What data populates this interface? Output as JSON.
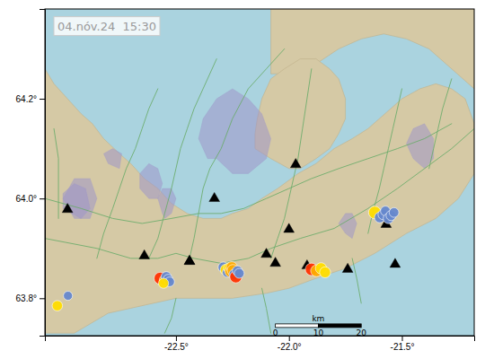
{
  "chart_data": {
    "type": "map",
    "annotation": "04.nóv.24  15:30",
    "xlim": [
      -23.08,
      -21.18
    ],
    "ylim": [
      63.725,
      64.38
    ],
    "xticks": [
      {
        "value": -22.5,
        "label": "-22.5°"
      },
      {
        "value": -22.0,
        "label": "-22.0°"
      },
      {
        "value": -21.5,
        "label": "-21.5°"
      }
    ],
    "yticks": [
      {
        "value": 63.8,
        "label": "63.8°"
      },
      {
        "value": 64.0,
        "label": "64.0°"
      },
      {
        "value": 64.2,
        "label": "64.2°"
      }
    ],
    "grid": false,
    "water_color": "#aad3df",
    "land_color": "#d5c9a5",
    "land_edge_color": "#c0b08a",
    "lava_color": "#9e96c8",
    "road_color": "#6aab6a",
    "land": [
      [
        [
          -23.08,
          63.73
        ],
        [
          -22.95,
          63.73
        ],
        [
          -22.8,
          63.77
        ],
        [
          -22.7,
          63.78
        ],
        [
          -22.6,
          63.79
        ],
        [
          -22.5,
          63.8
        ],
        [
          -22.4,
          63.8
        ],
        [
          -22.25,
          63.8
        ],
        [
          -22.1,
          63.81
        ],
        [
          -22.0,
          63.82
        ],
        [
          -21.88,
          63.84
        ],
        [
          -21.75,
          63.86
        ],
        [
          -21.62,
          63.89
        ],
        [
          -21.48,
          63.93
        ],
        [
          -21.35,
          63.96
        ],
        [
          -21.25,
          64.0
        ],
        [
          -21.18,
          64.05
        ],
        [
          -21.18,
          64.15
        ],
        [
          -21.22,
          64.2
        ],
        [
          -21.28,
          64.22
        ],
        [
          -21.35,
          64.23
        ],
        [
          -21.42,
          64.22
        ],
        [
          -21.5,
          64.2
        ],
        [
          -21.55,
          64.18
        ],
        [
          -21.6,
          64.16
        ],
        [
          -21.65,
          64.14
        ],
        [
          -21.72,
          64.12
        ],
        [
          -21.8,
          64.1
        ],
        [
          -21.88,
          64.07
        ],
        [
          -21.96,
          64.05
        ],
        [
          -22.05,
          64.02
        ],
        [
          -22.12,
          64.0
        ],
        [
          -22.18,
          63.98
        ],
        [
          -22.25,
          63.97
        ],
        [
          -22.3,
          63.96
        ],
        [
          -22.38,
          63.96
        ],
        [
          -22.45,
          63.97
        ],
        [
          -22.52,
          63.99
        ],
        [
          -22.58,
          64.02
        ],
        [
          -22.64,
          64.04
        ],
        [
          -22.7,
          64.07
        ],
        [
          -22.75,
          64.09
        ],
        [
          -22.82,
          64.12
        ],
        [
          -22.87,
          64.15
        ],
        [
          -22.92,
          64.17
        ],
        [
          -22.98,
          64.2
        ],
        [
          -23.04,
          64.23
        ],
        [
          -23.08,
          64.26
        ],
        [
          -23.08,
          63.73
        ]
      ],
      [
        [
          -22.08,
          64.25
        ],
        [
          -21.95,
          64.25
        ],
        [
          -21.88,
          64.27
        ],
        [
          -21.78,
          64.3
        ],
        [
          -21.68,
          64.32
        ],
        [
          -21.58,
          64.33
        ],
        [
          -21.48,
          64.32
        ],
        [
          -21.38,
          64.3
        ],
        [
          -21.28,
          64.26
        ],
        [
          -21.18,
          64.22
        ],
        [
          -21.18,
          64.38
        ],
        [
          -22.08,
          64.38
        ],
        [
          -22.08,
          64.25
        ]
      ],
      [
        [
          -22.15,
          64.1
        ],
        [
          -22.08,
          64.08
        ],
        [
          -22.0,
          64.06
        ],
        [
          -21.95,
          64.06
        ],
        [
          -21.88,
          64.08
        ],
        [
          -21.82,
          64.1
        ],
        [
          -21.78,
          64.13
        ],
        [
          -21.75,
          64.16
        ],
        [
          -21.75,
          64.2
        ],
        [
          -21.78,
          64.24
        ],
        [
          -21.82,
          64.26
        ],
        [
          -21.88,
          64.28
        ],
        [
          -21.95,
          64.28
        ],
        [
          -22.02,
          64.26
        ],
        [
          -22.08,
          64.24
        ],
        [
          -22.12,
          64.2
        ],
        [
          -22.14,
          64.16
        ],
        [
          -22.15,
          64.13
        ],
        [
          -22.15,
          64.1
        ]
      ]
    ],
    "lava": [
      [
        [
          -22.32,
          64.08
        ],
        [
          -22.25,
          64.05
        ],
        [
          -22.18,
          64.05
        ],
        [
          -22.1,
          64.08
        ],
        [
          -22.08,
          64.12
        ],
        [
          -22.12,
          64.17
        ],
        [
          -22.18,
          64.2
        ],
        [
          -22.25,
          64.22
        ],
        [
          -22.32,
          64.2
        ],
        [
          -22.38,
          64.16
        ],
        [
          -22.4,
          64.12
        ],
        [
          -22.36,
          64.08
        ]
      ],
      [
        [
          -22.95,
          63.96
        ],
        [
          -22.88,
          63.96
        ],
        [
          -22.85,
          64.0
        ],
        [
          -22.88,
          64.04
        ],
        [
          -22.95,
          64.04
        ],
        [
          -23.0,
          64.0
        ]
      ],
      [
        [
          -23.0,
          63.98
        ],
        [
          -22.92,
          63.96
        ],
        [
          -22.88,
          63.98
        ],
        [
          -22.9,
          64.02
        ],
        [
          -22.95,
          64.03
        ],
        [
          -23.0,
          64.01
        ]
      ],
      [
        [
          -22.55,
          63.96
        ],
        [
          -22.52,
          63.97
        ],
        [
          -22.5,
          64.0
        ],
        [
          -22.52,
          64.02
        ],
        [
          -22.56,
          64.02
        ],
        [
          -22.58,
          64.0
        ],
        [
          -22.56,
          63.97
        ]
      ],
      [
        [
          -22.62,
          64.0
        ],
        [
          -22.58,
          64.0
        ],
        [
          -22.56,
          64.03
        ],
        [
          -22.58,
          64.06
        ],
        [
          -22.62,
          64.07
        ],
        [
          -22.66,
          64.05
        ],
        [
          -22.66,
          64.02
        ]
      ],
      [
        [
          -21.45,
          64.08
        ],
        [
          -21.4,
          64.06
        ],
        [
          -21.36,
          64.08
        ],
        [
          -21.36,
          64.12
        ],
        [
          -21.4,
          64.15
        ],
        [
          -21.45,
          64.14
        ],
        [
          -21.48,
          64.11
        ]
      ],
      [
        [
          -21.75,
          63.93
        ],
        [
          -21.72,
          63.92
        ],
        [
          -21.7,
          63.95
        ],
        [
          -21.72,
          63.97
        ],
        [
          -21.75,
          63.97
        ],
        [
          -21.78,
          63.95
        ]
      ],
      [
        [
          -22.8,
          64.07
        ],
        [
          -22.75,
          64.06
        ],
        [
          -22.74,
          64.09
        ],
        [
          -22.78,
          64.1
        ],
        [
          -22.82,
          64.09
        ]
      ]
    ],
    "roads": [
      [
        [
          -23.08,
          63.92
        ],
        [
          -22.85,
          63.9
        ],
        [
          -22.7,
          63.88
        ],
        [
          -22.58,
          63.88
        ],
        [
          -22.5,
          63.89
        ],
        [
          -22.42,
          63.88
        ],
        [
          -22.3,
          63.87
        ],
        [
          -22.18,
          63.88
        ],
        [
          -22.08,
          63.9
        ],
        [
          -21.95,
          63.92
        ],
        [
          -21.8,
          63.94
        ],
        [
          -21.65,
          63.98
        ],
        [
          -21.52,
          64.02
        ],
        [
          -21.4,
          64.06
        ],
        [
          -21.28,
          64.1
        ],
        [
          -21.18,
          64.14
        ]
      ],
      [
        [
          -23.08,
          64.0
        ],
        [
          -22.92,
          63.98
        ],
        [
          -22.78,
          63.96
        ],
        [
          -22.65,
          63.95
        ],
        [
          -22.52,
          63.96
        ],
        [
          -22.4,
          63.97
        ],
        [
          -22.3,
          63.97
        ],
        [
          -22.2,
          63.98
        ],
        [
          -22.1,
          64.0
        ],
        [
          -22.0,
          64.02
        ],
        [
          -21.9,
          64.04
        ],
        [
          -21.78,
          64.06
        ],
        [
          -21.65,
          64.08
        ],
        [
          -21.52,
          64.1
        ],
        [
          -21.4,
          64.12
        ],
        [
          -21.28,
          64.15
        ]
      ],
      [
        [
          -22.62,
          63.88
        ],
        [
          -22.58,
          63.92
        ],
        [
          -22.55,
          63.97
        ],
        [
          -22.52,
          64.02
        ],
        [
          -22.5,
          64.06
        ],
        [
          -22.48,
          64.1
        ],
        [
          -22.45,
          64.14
        ],
        [
          -22.42,
          64.18
        ],
        [
          -22.38,
          64.22
        ],
        [
          -22.32,
          64.28
        ]
      ],
      [
        [
          -22.44,
          63.88
        ],
        [
          -22.42,
          63.92
        ],
        [
          -22.4,
          63.97
        ],
        [
          -22.38,
          64.02
        ],
        [
          -22.35,
          64.06
        ],
        [
          -22.3,
          64.1
        ],
        [
          -22.25,
          64.16
        ],
        [
          -22.18,
          64.22
        ],
        [
          -22.1,
          64.26
        ],
        [
          -22.02,
          64.3
        ]
      ],
      [
        [
          -22.08,
          63.88
        ],
        [
          -22.05,
          63.92
        ],
        [
          -22.02,
          63.96
        ],
        [
          -22.0,
          64.0
        ],
        [
          -21.98,
          64.04
        ],
        [
          -21.96,
          64.08
        ],
        [
          -21.94,
          64.14
        ],
        [
          -21.92,
          64.2
        ],
        [
          -21.9,
          64.26
        ]
      ],
      [
        [
          -21.65,
          63.93
        ],
        [
          -21.63,
          63.97
        ],
        [
          -21.6,
          64.02
        ],
        [
          -21.58,
          64.06
        ],
        [
          -21.56,
          64.1
        ],
        [
          -21.54,
          64.14
        ],
        [
          -21.52,
          64.18
        ],
        [
          -21.5,
          64.22
        ]
      ],
      [
        [
          -22.85,
          63.88
        ],
        [
          -22.82,
          63.93
        ],
        [
          -22.78,
          63.98
        ],
        [
          -22.75,
          64.02
        ],
        [
          -22.72,
          64.06
        ],
        [
          -22.68,
          64.1
        ],
        [
          -22.65,
          64.14
        ],
        [
          -22.62,
          64.18
        ],
        [
          -22.58,
          64.22
        ]
      ],
      [
        [
          -21.38,
          64.06
        ],
        [
          -21.36,
          64.1
        ],
        [
          -21.34,
          64.14
        ],
        [
          -21.32,
          64.18
        ],
        [
          -21.28,
          64.24
        ]
      ],
      [
        [
          -22.5,
          63.8
        ],
        [
          -22.52,
          63.76
        ],
        [
          -22.55,
          63.73
        ]
      ],
      [
        [
          -22.12,
          63.82
        ],
        [
          -22.1,
          63.78
        ],
        [
          -22.08,
          63.73
        ]
      ],
      [
        [
          -21.72,
          63.88
        ],
        [
          -21.7,
          63.84
        ],
        [
          -21.68,
          63.79
        ]
      ],
      [
        [
          -23.02,
          63.96
        ],
        [
          -23.02,
          64.02
        ],
        [
          -23.02,
          64.08
        ],
        [
          -23.04,
          64.14
        ]
      ]
    ],
    "series": [
      {
        "type": "scatter",
        "marker": "triangle",
        "color": "#000000",
        "x": [
          -22.06,
          -22.44,
          -22.64,
          -22.1,
          -22.33,
          -22.0,
          -21.97,
          -21.53,
          -21.74,
          -21.92,
          -21.57,
          -22.44,
          -22.98
        ],
        "values": [
          63.87,
          63.874,
          63.885,
          63.888,
          64.0,
          63.938,
          64.068,
          63.868,
          63.858,
          63.865,
          63.948,
          63.874,
          63.978
        ]
      },
      {
        "type": "scatter",
        "marker": "circle",
        "x": [
          -22.57,
          -22.55,
          -22.543,
          -22.535,
          -22.528,
          -22.555,
          -22.29,
          -22.278,
          -22.272,
          -22.265,
          -22.258,
          -22.253,
          -22.248,
          -22.242,
          -22.235,
          -22.228,
          -22.22,
          -21.9,
          -21.878,
          -21.858,
          -21.84,
          -21.62,
          -21.598,
          -21.583,
          -21.573,
          -21.56,
          -21.548,
          -21.535,
          -22.978,
          -23.025
        ],
        "values": [
          63.84,
          63.836,
          63.843,
          63.838,
          63.833,
          63.83,
          63.862,
          63.857,
          63.852,
          63.86,
          63.854,
          63.862,
          63.856,
          63.848,
          63.843,
          63.855,
          63.85,
          63.858,
          63.855,
          63.86,
          63.852,
          63.972,
          63.962,
          63.968,
          63.975,
          63.96,
          63.966,
          63.972,
          63.805,
          63.785
        ],
        "colors": [
          "#ff3300",
          "#ffaa00",
          "#6688cc",
          "#6688cc",
          "#6688cc",
          "#ffdd00",
          "#6688cc",
          "#ffdd00",
          "#6688cc",
          "#ffdd00",
          "#ffaa00",
          "#ffaa00",
          "#ffaa00",
          "#6688cc",
          "#ff3300",
          "#6688cc",
          "#6688cc",
          "#ff3300",
          "#ffaa00",
          "#ffdd00",
          "#ffdd00",
          "#ffdd00",
          "#6688cc",
          "#6688cc",
          "#6688cc",
          "#6688cc",
          "#6688cc",
          "#6688cc",
          "#6688cc",
          "#ffdd00"
        ],
        "sizes": [
          75,
          60,
          55,
          50,
          48,
          52,
          58,
          68,
          52,
          62,
          70,
          65,
          68,
          55,
          75,
          52,
          50,
          80,
          70,
          65,
          62,
          80,
          58,
          55,
          50,
          55,
          52,
          48,
          42,
          55
        ]
      }
    ],
    "scale_bar": {
      "x0": -22.06,
      "x1": -21.68,
      "y": 63.745,
      "label_y": 63.737,
      "labels": [
        "0",
        "10",
        "20"
      ],
      "label_x": [
        -22.06,
        -21.87,
        -21.68
      ],
      "unit": "km"
    }
  }
}
